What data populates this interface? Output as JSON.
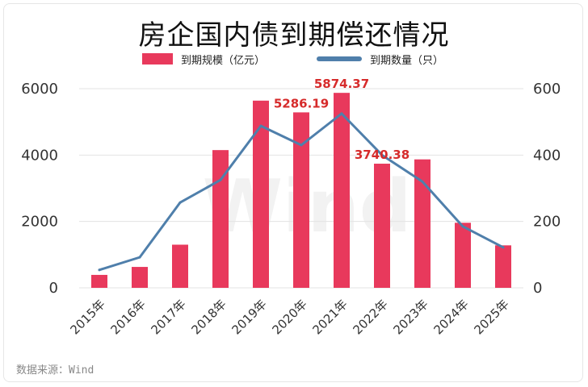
{
  "title": "房企国内债到期偿还情况",
  "legend": {
    "bar_label": "到期规模（亿元）",
    "line_label": "到期数量（只）"
  },
  "source": "数据来源：Wind",
  "watermark": "Wind",
  "colors": {
    "bar": "#e8395c",
    "line": "#4f7fab",
    "data_label": "#d62b2b"
  },
  "chart_data": {
    "type": "bar+line",
    "title": "房企国内债到期偿还情况",
    "categories": [
      "2015年",
      "2016年",
      "2017年",
      "2018年",
      "2019年",
      "2020年",
      "2021年",
      "2022年",
      "2023年",
      "2024年",
      "2025年"
    ],
    "series": [
      {
        "name": "到期规模（亿元）",
        "type": "bar",
        "axis": "left",
        "values": [
          390,
          630,
          1300,
          4150,
          5640,
          5286.19,
          5874.37,
          3740.38,
          3870,
          1960,
          1280
        ]
      },
      {
        "name": "到期数量（只）",
        "type": "line",
        "axis": "right",
        "values": [
          54,
          92,
          257,
          325,
          488,
          430,
          525,
          400,
          320,
          185,
          122
        ]
      }
    ],
    "data_labels": [
      {
        "category": "2020年",
        "text": "5286.19"
      },
      {
        "category": "2021年",
        "text": "5874.37"
      },
      {
        "category": "2022年",
        "text": "3740.38"
      }
    ],
    "left_axis": {
      "ticks": [
        "0",
        "2000",
        "4000",
        "6000"
      ],
      "range": [
        0,
        6000
      ]
    },
    "right_axis": {
      "ticks": [
        "0",
        "200",
        "400",
        "600"
      ],
      "range": [
        0,
        600
      ]
    },
    "grid": true,
    "legend_position": "top"
  }
}
